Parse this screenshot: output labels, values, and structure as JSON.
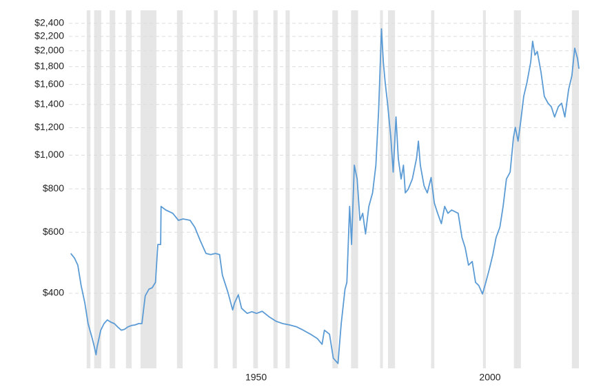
{
  "chart_data": {
    "type": "line",
    "log_scale": true,
    "grid": true,
    "color": "#5b9bd5",
    "recession_color": "#e6e6e6",
    "xlim": [
      1910,
      2019
    ],
    "xticks": [
      1950,
      2000
    ],
    "ylim": [
      243,
      2616
    ],
    "yticks": [
      {
        "value": 400,
        "label": "$400"
      },
      {
        "value": 600,
        "label": "$600"
      },
      {
        "value": 800,
        "label": "$800"
      },
      {
        "value": 1000,
        "label": "$1,000"
      },
      {
        "value": 1200,
        "label": "$1,200"
      },
      {
        "value": 1400,
        "label": "$1,400"
      },
      {
        "value": 1600,
        "label": "$1,600"
      },
      {
        "value": 1800,
        "label": "$1,800"
      },
      {
        "value": 2000,
        "label": "$2,000"
      },
      {
        "value": 2200,
        "label": "$2,200"
      },
      {
        "value": 2400,
        "label": "$2,400"
      }
    ],
    "recessions": [
      [
        1913.8,
        1914.6
      ],
      [
        1915.4,
        1916.9
      ],
      [
        1918.7,
        1919.9
      ],
      [
        1922.2,
        1923.4
      ],
      [
        1925.3,
        1928.7
      ],
      [
        1933.1,
        1934.3
      ],
      [
        1941.0,
        1941.8
      ],
      [
        1945.0,
        1945.9
      ],
      [
        1949.4,
        1950.4
      ],
      [
        1953.7,
        1954.6
      ],
      [
        1956.3,
        1957.2
      ],
      [
        1966.3,
        1967.5
      ],
      [
        1970.3,
        1971.8
      ],
      [
        1976.5,
        1977.1
      ],
      [
        1978.2,
        1979.7
      ],
      [
        1987.4,
        1988.1
      ],
      [
        1998.5,
        1999.1
      ],
      [
        2005.1,
        2006.6
      ],
      [
        2017.5,
        2019.0
      ]
    ],
    "x": [
      1910.4,
      1911.2,
      1911.9,
      1912.6,
      1913.4,
      1914.1,
      1914.9,
      1915.3,
      1915.8,
      1916.0,
      1916.8,
      1917.5,
      1918.2,
      1919.0,
      1919.7,
      1920.4,
      1921.2,
      1921.9,
      1922.6,
      1923.4,
      1924.1,
      1924.9,
      1925.6,
      1926.3,
      1927.1,
      1927.8,
      1928.5,
      1929.0,
      1929.6,
      1929.7,
      1930.7,
      1932.2,
      1933.4,
      1934.4,
      1935.9,
      1936.9,
      1938.1,
      1939.3,
      1940.3,
      1941.3,
      1942.2,
      1942.8,
      1944.0,
      1945.0,
      1945.4,
      1946.2,
      1946.9,
      1948.1,
      1949.1,
      1950.1,
      1951.3,
      1952.8,
      1954.3,
      1955.7,
      1957.2,
      1958.7,
      1960.1,
      1961.6,
      1963.1,
      1964.1,
      1964.6,
      1965.7,
      1966.5,
      1967.5,
      1968.2,
      1969.0,
      1969.4,
      1970.0,
      1970.4,
      1971.0,
      1971.6,
      1972.2,
      1972.8,
      1973.4,
      1974.1,
      1974.9,
      1975.6,
      1976.2,
      1976.8,
      1977.2,
      1977.6,
      1978.1,
      1978.8,
      1979.3,
      1979.9,
      1980.4,
      1981.0,
      1981.5,
      1981.9,
      1982.5,
      1983.4,
      1984.3,
      1984.7,
      1985.1,
      1985.9,
      1986.6,
      1987.4,
      1988.1,
      1988.8,
      1989.6,
      1990.3,
      1991.0,
      1991.8,
      1993.2,
      1994.0,
      1994.7,
      1995.4,
      1996.2,
      1996.9,
      1997.6,
      1998.4,
      1999.1,
      1999.9,
      2000.6,
      2001.3,
      2002.1,
      2002.8,
      2003.5,
      2004.3,
      2005.0,
      2005.4,
      2006.0,
      2006.5,
      2007.2,
      2007.9,
      2008.7,
      2009.1,
      2009.6,
      2010.1,
      2010.9,
      2011.6,
      2012.4,
      2013.1,
      2013.8,
      2014.6,
      2015.3,
      2016.0,
      2016.8,
      2017.5,
      2018.1,
      2018.7,
      2019.0
    ],
    "values": [
      521,
      505,
      482,
      421,
      375,
      327,
      299,
      285,
      266,
      279,
      313,
      327,
      335,
      330,
      327,
      320,
      313,
      315,
      320,
      323,
      324,
      327,
      327,
      393,
      411,
      415,
      430,
      553,
      553,
      712,
      695,
      680,
      649,
      655,
      649,
      620,
      566,
      521,
      517,
      521,
      517,
      451,
      402,
      358,
      375,
      396,
      362,
      350,
      354,
      350,
      355,
      342,
      332,
      327,
      324,
      320,
      313,
      305,
      296,
      285,
      313,
      305,
      260,
      251,
      327,
      411,
      430,
      712,
      553,
      936,
      854,
      649,
      680,
      593,
      712,
      779,
      936,
      1349,
      2313,
      1858,
      1620,
      1412,
      1124,
      894,
      1289,
      980,
      854,
      936,
      779,
      797,
      854,
      980,
      1098,
      936,
      816,
      779,
      862,
      728,
      680,
      635,
      712,
      680,
      695,
      680,
      579,
      541,
      482,
      494,
      430,
      421,
      398,
      430,
      472,
      517,
      579,
      620,
      712,
      854,
      894,
      1124,
      1203,
      1098,
      1231,
      1478,
      1620,
      1858,
      2131,
      1944,
      1990,
      1735,
      1478,
      1412,
      1380,
      1289,
      1380,
      1412,
      1289,
      1548,
      1695,
      2035,
      1900,
      1775
    ]
  }
}
